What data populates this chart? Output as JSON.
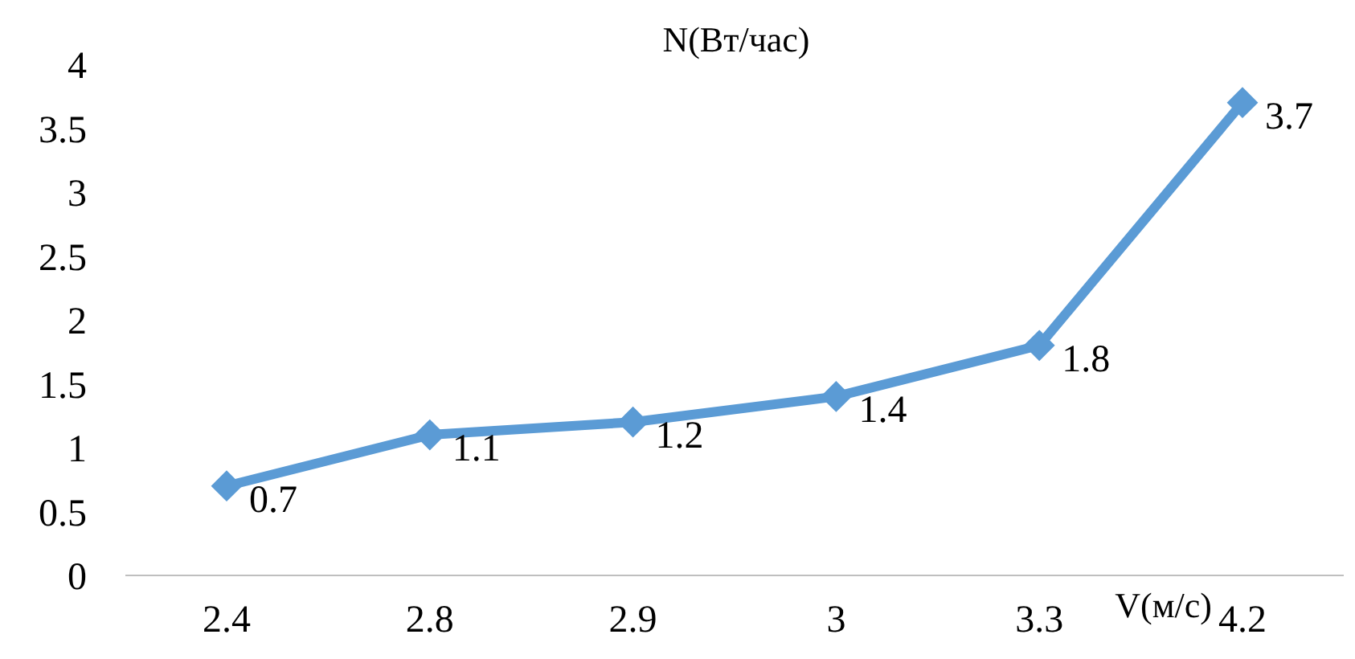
{
  "chart_data": {
    "type": "line",
    "title": "N(Вт/час)",
    "xlabel": "V(м/с)",
    "categories": [
      "2.4",
      "2.8",
      "2.9",
      "3",
      "3.3",
      "4.2"
    ],
    "series": [
      {
        "color": "#5b9bd5",
        "values": [
          0.7,
          1.1,
          1.2,
          1.4,
          1.8,
          3.7
        ]
      }
    ],
    "ylim": [
      0,
      4
    ],
    "yticks": [
      0,
      0.5,
      1,
      1.5,
      2,
      2.5,
      3,
      3.5,
      4
    ],
    "grid": false,
    "legend": false,
    "marker": "diamond",
    "line_style": "solid",
    "data_labels": true
  }
}
